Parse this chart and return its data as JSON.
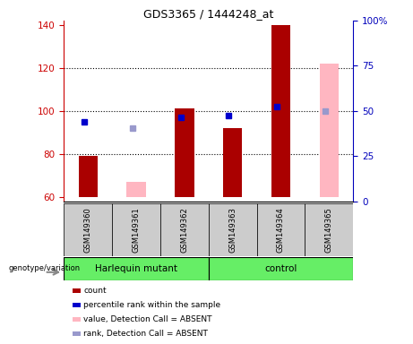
{
  "title": "GDS3365 / 1444248_at",
  "samples": [
    "GSM149360",
    "GSM149361",
    "GSM149362",
    "GSM149363",
    "GSM149364",
    "GSM149365"
  ],
  "group_labels": [
    "Harlequin mutant",
    "control"
  ],
  "ylim_left": [
    58,
    142
  ],
  "ylim_right": [
    0,
    100
  ],
  "yticks_left": [
    60,
    80,
    100,
    120,
    140
  ],
  "yticks_right": [
    0,
    25,
    50,
    75,
    100
  ],
  "ytick_labels_right": [
    "0",
    "25",
    "50",
    "75",
    "100%"
  ],
  "bar_width": 0.4,
  "count_bars": {
    "color": "#AA0000",
    "values": [
      79,
      null,
      101,
      92,
      140,
      null
    ],
    "bottom": [
      60,
      null,
      60,
      60,
      60,
      null
    ]
  },
  "absent_value_bars": {
    "color": "#FFB6C1",
    "values": [
      null,
      67,
      null,
      null,
      null,
      122
    ],
    "bottom": [
      null,
      60,
      null,
      null,
      null,
      60
    ]
  },
  "percentile_rank_dots": {
    "color": "#0000CC",
    "values": [
      95,
      null,
      97,
      98,
      102,
      null
    ],
    "present": [
      true,
      false,
      true,
      true,
      true,
      false
    ]
  },
  "absent_rank_dots": {
    "color": "#9999CC",
    "values": [
      null,
      92,
      null,
      null,
      null,
      100
    ],
    "present": [
      false,
      true,
      false,
      false,
      false,
      true
    ]
  },
  "dotted_lines": [
    80,
    100,
    120
  ],
  "background_color": "#ffffff",
  "left_axis_color": "#CC0000",
  "right_axis_color": "#0000BB",
  "sample_bg_color": "#cccccc",
  "group_bg_color": "#66EE66",
  "legend_items": [
    {
      "label": "count",
      "color": "#AA0000"
    },
    {
      "label": "percentile rank within the sample",
      "color": "#0000CC"
    },
    {
      "label": "value, Detection Call = ABSENT",
      "color": "#FFB6C1"
    },
    {
      "label": "rank, Detection Call = ABSENT",
      "color": "#9999CC"
    }
  ]
}
